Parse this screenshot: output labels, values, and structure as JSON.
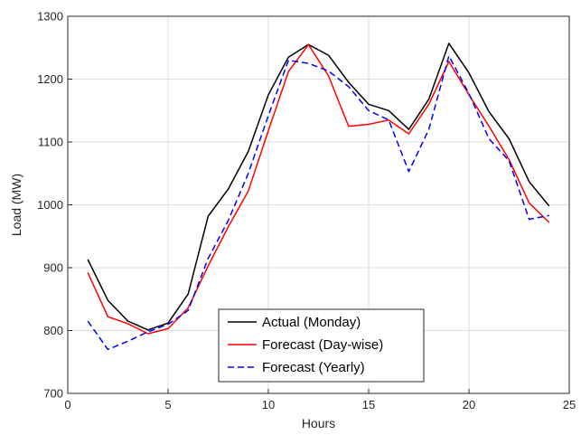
{
  "chart_data": {
    "type": "line",
    "title": "",
    "xlabel": "Hours",
    "ylabel": "Load (MW)",
    "xlim": [
      0,
      25
    ],
    "ylim": [
      700,
      1300
    ],
    "xticks": [
      0,
      5,
      10,
      15,
      20,
      25
    ],
    "yticks": [
      700,
      800,
      900,
      1000,
      1100,
      1200,
      1300
    ],
    "grid": true,
    "legend_position": "bottom-center",
    "x": [
      1,
      2,
      3,
      4,
      5,
      6,
      7,
      8,
      9,
      10,
      11,
      12,
      13,
      14,
      15,
      16,
      17,
      18,
      19,
      20,
      21,
      22,
      23,
      24
    ],
    "series": [
      {
        "name": "Actual (Monday)",
        "color": "#000000",
        "dash": "solid",
        "values": [
          913,
          848,
          815,
          801,
          812,
          858,
          982,
          1025,
          1085,
          1175,
          1235,
          1255,
          1238,
          1195,
          1160,
          1150,
          1120,
          1168,
          1257,
          1210,
          1148,
          1105,
          1037,
          998
        ]
      },
      {
        "name": "Forecast (Day-wise)",
        "color": "#ff0000",
        "dash": "solid",
        "values": [
          892,
          822,
          811,
          795,
          803,
          836,
          903,
          965,
          1022,
          1118,
          1212,
          1255,
          1205,
          1125,
          1128,
          1135,
          1113,
          1160,
          1228,
          1175,
          1125,
          1072,
          1003,
          972
        ]
      },
      {
        "name": "Forecast (Yearly)",
        "color": "#0000ff",
        "dash": "dashed",
        "values": [
          815,
          770,
          783,
          798,
          810,
          832,
          915,
          975,
          1050,
          1142,
          1230,
          1225,
          1213,
          1188,
          1150,
          1135,
          1053,
          1120,
          1237,
          1177,
          1105,
          1070,
          977,
          983
        ]
      }
    ]
  }
}
